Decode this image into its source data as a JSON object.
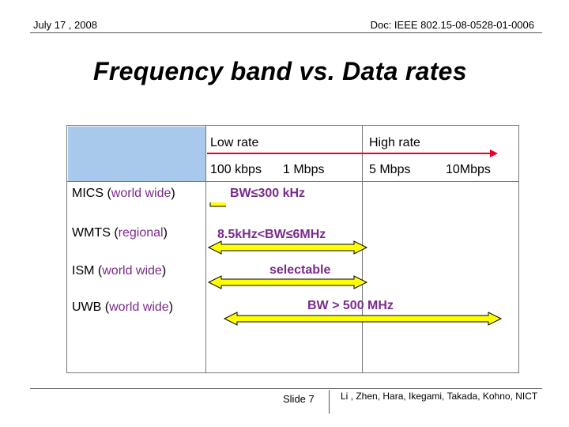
{
  "header": {
    "date": "July 17 , 2008",
    "doc": "Doc: IEEE 802.15-08-0528-01-0006"
  },
  "title": "Frequency band vs. Data rates",
  "table": {
    "column_headers": {
      "low_rate": "Low rate",
      "high_rate": "High rate"
    },
    "rate_ticks": [
      "100 kbps",
      "1 Mbps",
      "5 Mbps",
      "10Mbps"
    ],
    "rows": [
      {
        "name": "MICS",
        "region": "world wide",
        "bandwidth": "BW≤300 kHz"
      },
      {
        "name": "WMTS",
        "region": "regional",
        "bandwidth": "8.5kHz<BW≤6MHz"
      },
      {
        "name": "ISM",
        "region": "world wide",
        "bandwidth": "selectable"
      },
      {
        "name": "UWB",
        "region": "world wide",
        "bandwidth": "BW > 500 MHz"
      }
    ]
  },
  "colors": {
    "header_block": "#a8c8ec",
    "rate_arrow": "#e8002a",
    "band_fill": "#ffff00",
    "band_outline": "#000000",
    "region_text": "#7a2a8c"
  },
  "footer": {
    "slide": "Slide 7",
    "authors": "Li , Zhen, Hara, Ikegami, Takada, Kohno, NICT"
  }
}
